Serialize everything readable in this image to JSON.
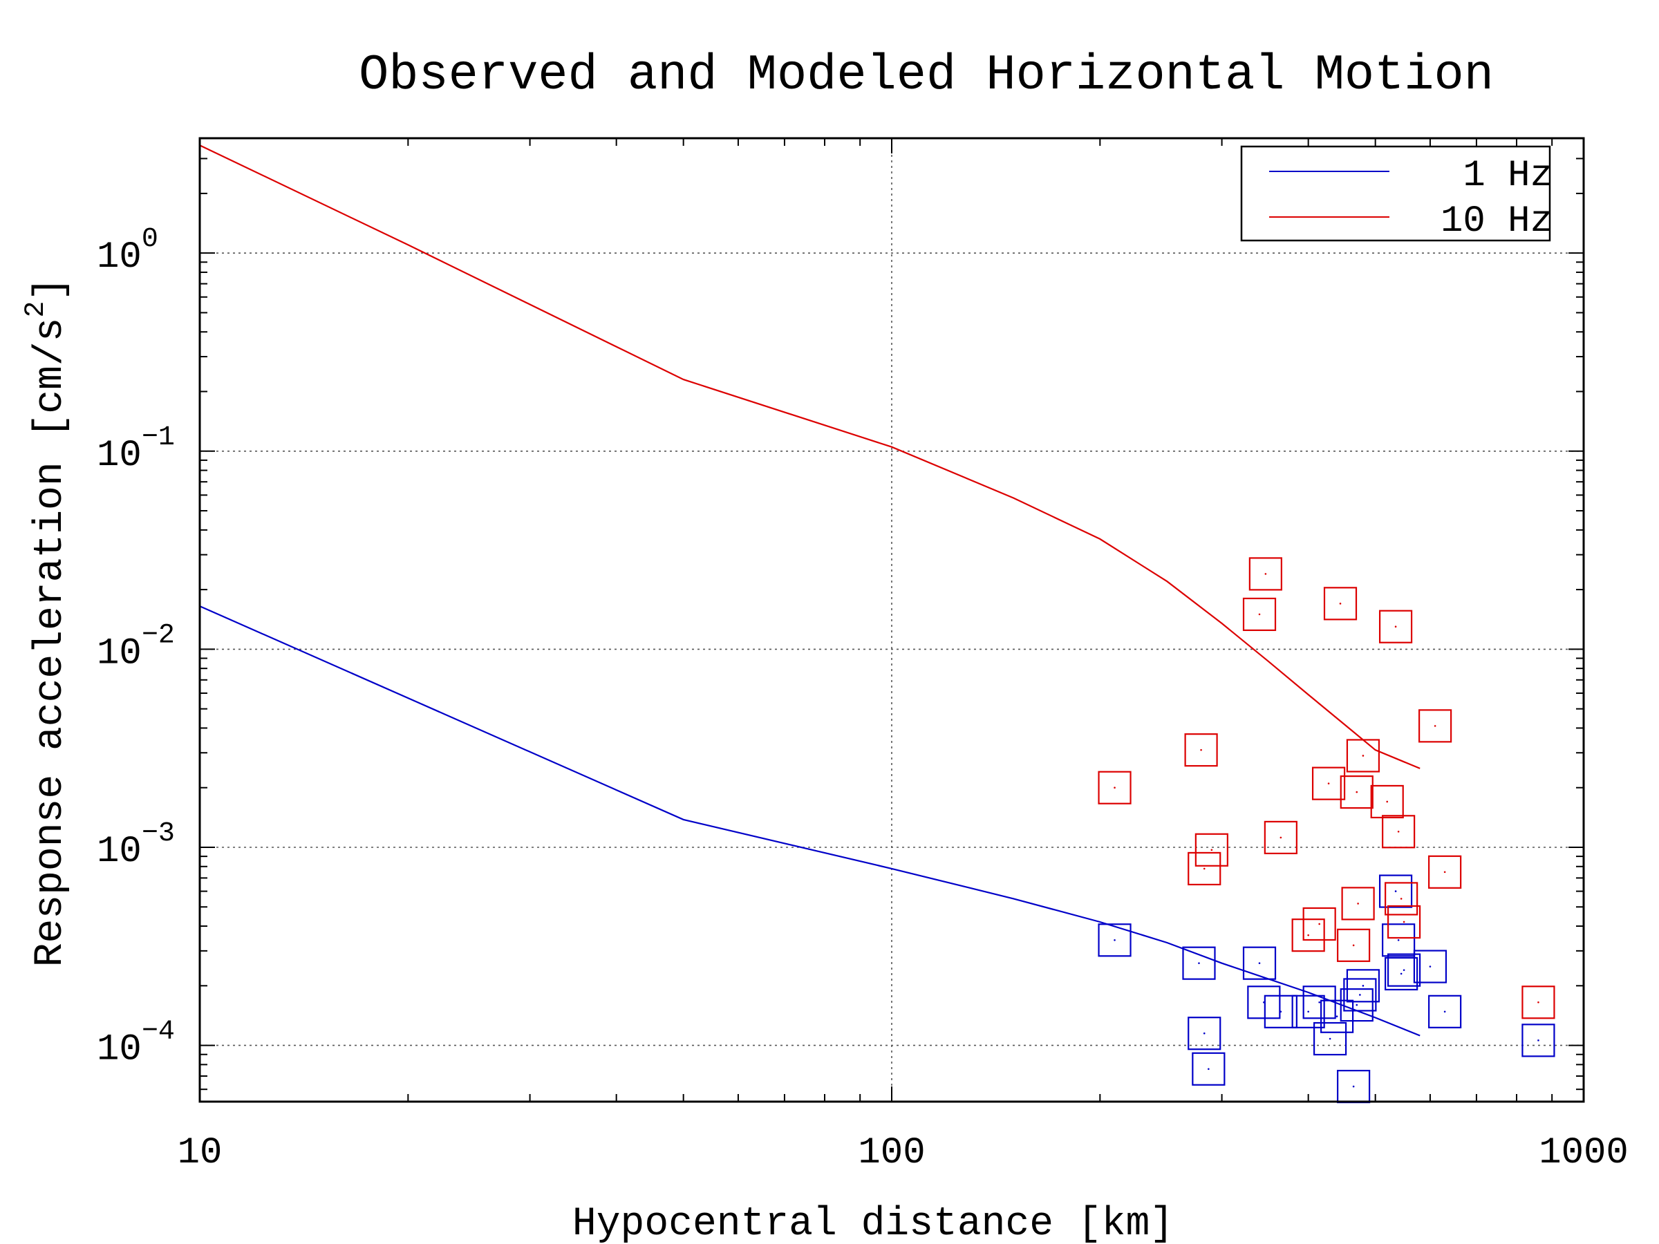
{
  "chart_data": {
    "type": "scatter",
    "title": "Observed and Modeled Horizontal Motion",
    "xlabel": "Hypocentral distance [km]",
    "ylabel_text": "Response acceleration [cm/s",
    "ylabel_sup": "2",
    "ylabel_close": "]",
    "xscale": "log",
    "yscale": "log",
    "xlim": [
      10,
      1000
    ],
    "ylim": [
      5.2e-05,
      3.8
    ],
    "grid": true,
    "legend_position": "top-right",
    "x_ticks": [
      {
        "value": 10,
        "label": "10"
      },
      {
        "value": 100,
        "label": "100"
      },
      {
        "value": 1000,
        "label": "1000"
      }
    ],
    "y_ticks": [
      {
        "value": 1,
        "base": "10",
        "exp": "0"
      },
      {
        "value": 0.1,
        "base": "10",
        "exp": "−1"
      },
      {
        "value": 0.01,
        "base": "10",
        "exp": "−2"
      },
      {
        "value": 0.001,
        "base": "10",
        "exp": "−3"
      },
      {
        "value": 0.0001,
        "base": "10",
        "exp": "−4"
      }
    ],
    "lines": [
      {
        "name": "1 Hz",
        "color": "#0000c8",
        "x": [
          10,
          50,
          100,
          150,
          200,
          250,
          300,
          400,
          500,
          580
        ],
        "y": [
          0.0165,
          0.00138,
          0.00078,
          0.00055,
          0.00042,
          0.00033,
          0.00026,
          0.000185,
          0.000138,
          0.000112
        ]
      },
      {
        "name": "10 Hz",
        "color": "#dc0000",
        "x": [
          10,
          20,
          50,
          100,
          150,
          200,
          250,
          300,
          350,
          400,
          450,
          500,
          580
        ],
        "y": [
          3.5,
          1.1,
          0.23,
          0.105,
          0.058,
          0.036,
          0.022,
          0.0135,
          0.0087,
          0.0059,
          0.0042,
          0.0031,
          0.0025
        ]
      }
    ],
    "observed": [
      {
        "name": "1 Hz",
        "color": "#0000c8",
        "points": [
          [
            210,
            0.00034
          ],
          [
            278,
            0.00026
          ],
          [
            283,
            0.000115
          ],
          [
            287,
            7.6e-05
          ],
          [
            340,
            0.00026
          ],
          [
            345,
            0.000165
          ],
          [
            365,
            0.000148
          ],
          [
            400,
            0.000148
          ],
          [
            415,
            0.000165
          ],
          [
            430,
            0.000108
          ],
          [
            440,
            0.00014
          ],
          [
            465,
            6.2e-05
          ],
          [
            470,
            0.00016
          ],
          [
            475,
            0.00018
          ],
          [
            480,
            0.0002
          ],
          [
            535,
            0.0006
          ],
          [
            540,
            0.00034
          ],
          [
            545,
            0.00023
          ],
          [
            550,
            0.00024
          ],
          [
            600,
            0.00025
          ],
          [
            630,
            0.000148
          ],
          [
            860,
            0.000106
          ]
        ]
      },
      {
        "name": "10 Hz",
        "color": "#dc0000",
        "points": [
          [
            210,
            0.002
          ],
          [
            280,
            0.0031
          ],
          [
            283,
            0.00078
          ],
          [
            290,
            0.00097
          ],
          [
            340,
            0.015
          ],
          [
            347,
            0.024
          ],
          [
            365,
            0.00112
          ],
          [
            400,
            0.00036
          ],
          [
            415,
            0.00041
          ],
          [
            428,
            0.0021
          ],
          [
            445,
            0.017
          ],
          [
            465,
            0.00032
          ],
          [
            470,
            0.0019
          ],
          [
            472,
            0.00052
          ],
          [
            480,
            0.0029
          ],
          [
            520,
            0.0017
          ],
          [
            535,
            0.013
          ],
          [
            540,
            0.0012
          ],
          [
            545,
            0.00055
          ],
          [
            550,
            0.00042
          ],
          [
            610,
            0.0041
          ],
          [
            630,
            0.00075
          ],
          [
            860,
            0.000165
          ]
        ]
      }
    ]
  }
}
